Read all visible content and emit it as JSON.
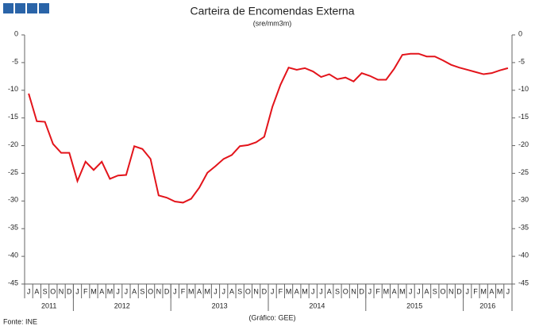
{
  "chart_data": {
    "type": "line",
    "title": "Carteira de Encomendas  Externa",
    "subtitle": "(sre/mm3m)",
    "source": "Fonte: INE",
    "credit": "(Gráfico: GEE)",
    "categories": [
      "J",
      "A",
      "S",
      "O",
      "N",
      "D",
      "J",
      "F",
      "M",
      "A",
      "M",
      "J",
      "J",
      "A",
      "S",
      "O",
      "N",
      "D",
      "J",
      "F",
      "M",
      "A",
      "M",
      "J",
      "J",
      "A",
      "S",
      "O",
      "N",
      "D",
      "J",
      "F",
      "M",
      "A",
      "M",
      "J",
      "J",
      "A",
      "S",
      "O",
      "N",
      "D",
      "J",
      "F",
      "M",
      "A",
      "M",
      "J",
      "J",
      "A",
      "S",
      "O",
      "N",
      "D",
      "J",
      "F",
      "M",
      "A",
      "M",
      "J"
    ],
    "groups": [
      "2011",
      "2012",
      "2013",
      "2014",
      "2015",
      "2016"
    ],
    "values": [
      -10.6,
      -15.6,
      -15.7,
      -19.7,
      -21.3,
      -21.3,
      -26.4,
      -22.9,
      -24.4,
      -22.9,
      -26,
      -25.4,
      -25.3,
      -20.1,
      -20.6,
      -22.4,
      -29,
      -29.4,
      -30.1,
      -30.3,
      -29.6,
      -27.6,
      -24.9,
      -23.7,
      -22.4,
      -21.7,
      -20.1,
      -19.9,
      -19.4,
      -18.4,
      -13,
      -9,
      -5.9,
      -6.3,
      -6,
      -6.6,
      -7.6,
      -7.1,
      -8,
      -7.7,
      -8.4,
      -6.9,
      -7.4,
      -8.1,
      -8.1,
      -6.1,
      -3.6,
      -3.4,
      -3.4,
      -3.9,
      -3.9,
      -4.6,
      -5.4,
      -5.9,
      -6.3,
      -6.7,
      -7.1,
      -6.9,
      -6.4,
      -6
    ],
    "color": "#e3141b",
    "ylim": [
      -45,
      0
    ],
    "yticks": [
      0,
      -5,
      -10,
      -15,
      -20,
      -25,
      -30,
      -35,
      -40,
      -45
    ]
  }
}
